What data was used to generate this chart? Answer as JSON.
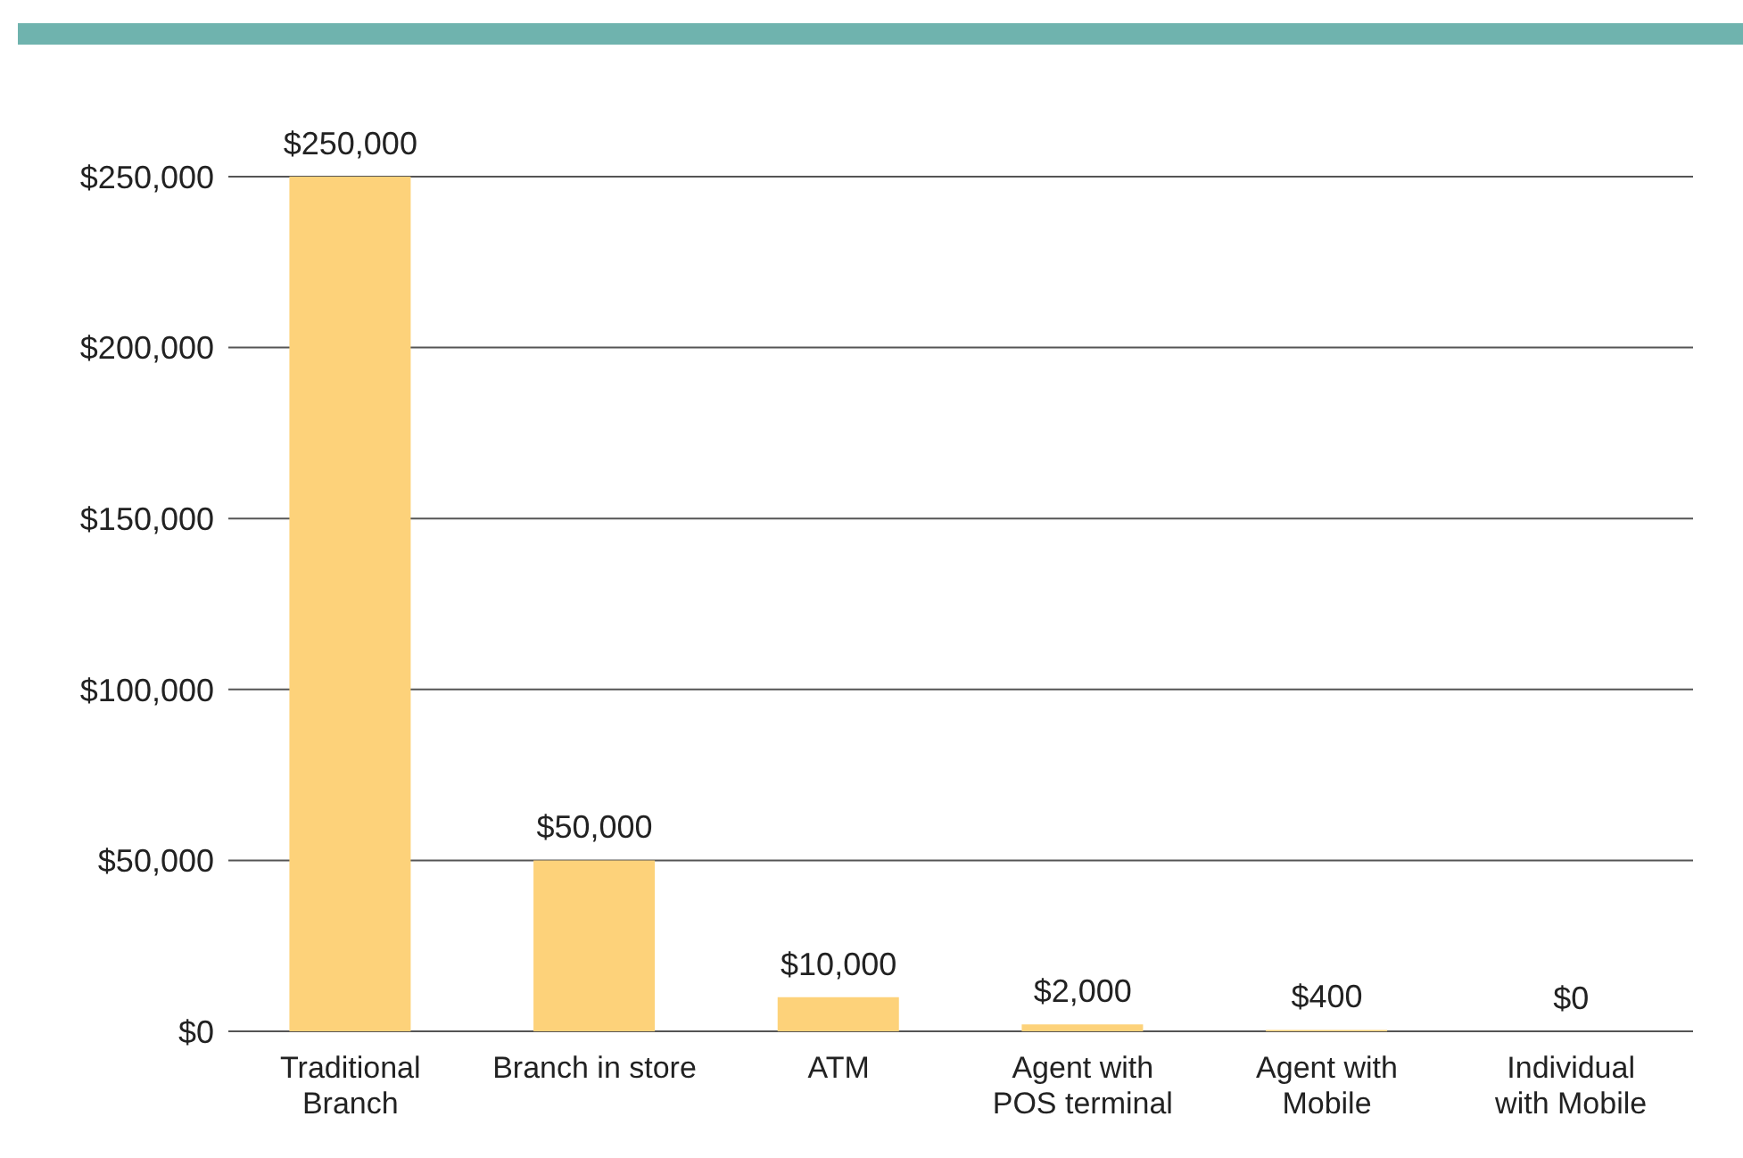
{
  "chart_data": {
    "type": "bar",
    "categories": [
      "Traditional Branch",
      "Branch in store",
      "ATM",
      "Agent with POS terminal",
      "Agent with Mobile",
      "Individual with Mobile"
    ],
    "values": [
      250000,
      50000,
      10000,
      2000,
      400,
      0
    ],
    "value_labels": [
      "$250,000",
      "$50,000",
      "$10,000",
      "$2,000",
      "$400",
      "$0"
    ],
    "color": "#fdd27a",
    "ylim": [
      0,
      250000
    ],
    "yticks": [
      {
        "value": 0,
        "label": "$0"
      },
      {
        "value": 50000,
        "label": "$50,000"
      },
      {
        "value": 100000,
        "label": "$100,000"
      },
      {
        "value": 150000,
        "label": "$150,000"
      },
      {
        "value": 200000,
        "label": "$200,000"
      },
      {
        "value": 250000,
        "label": "$250,000"
      }
    ],
    "grid": "y"
  }
}
